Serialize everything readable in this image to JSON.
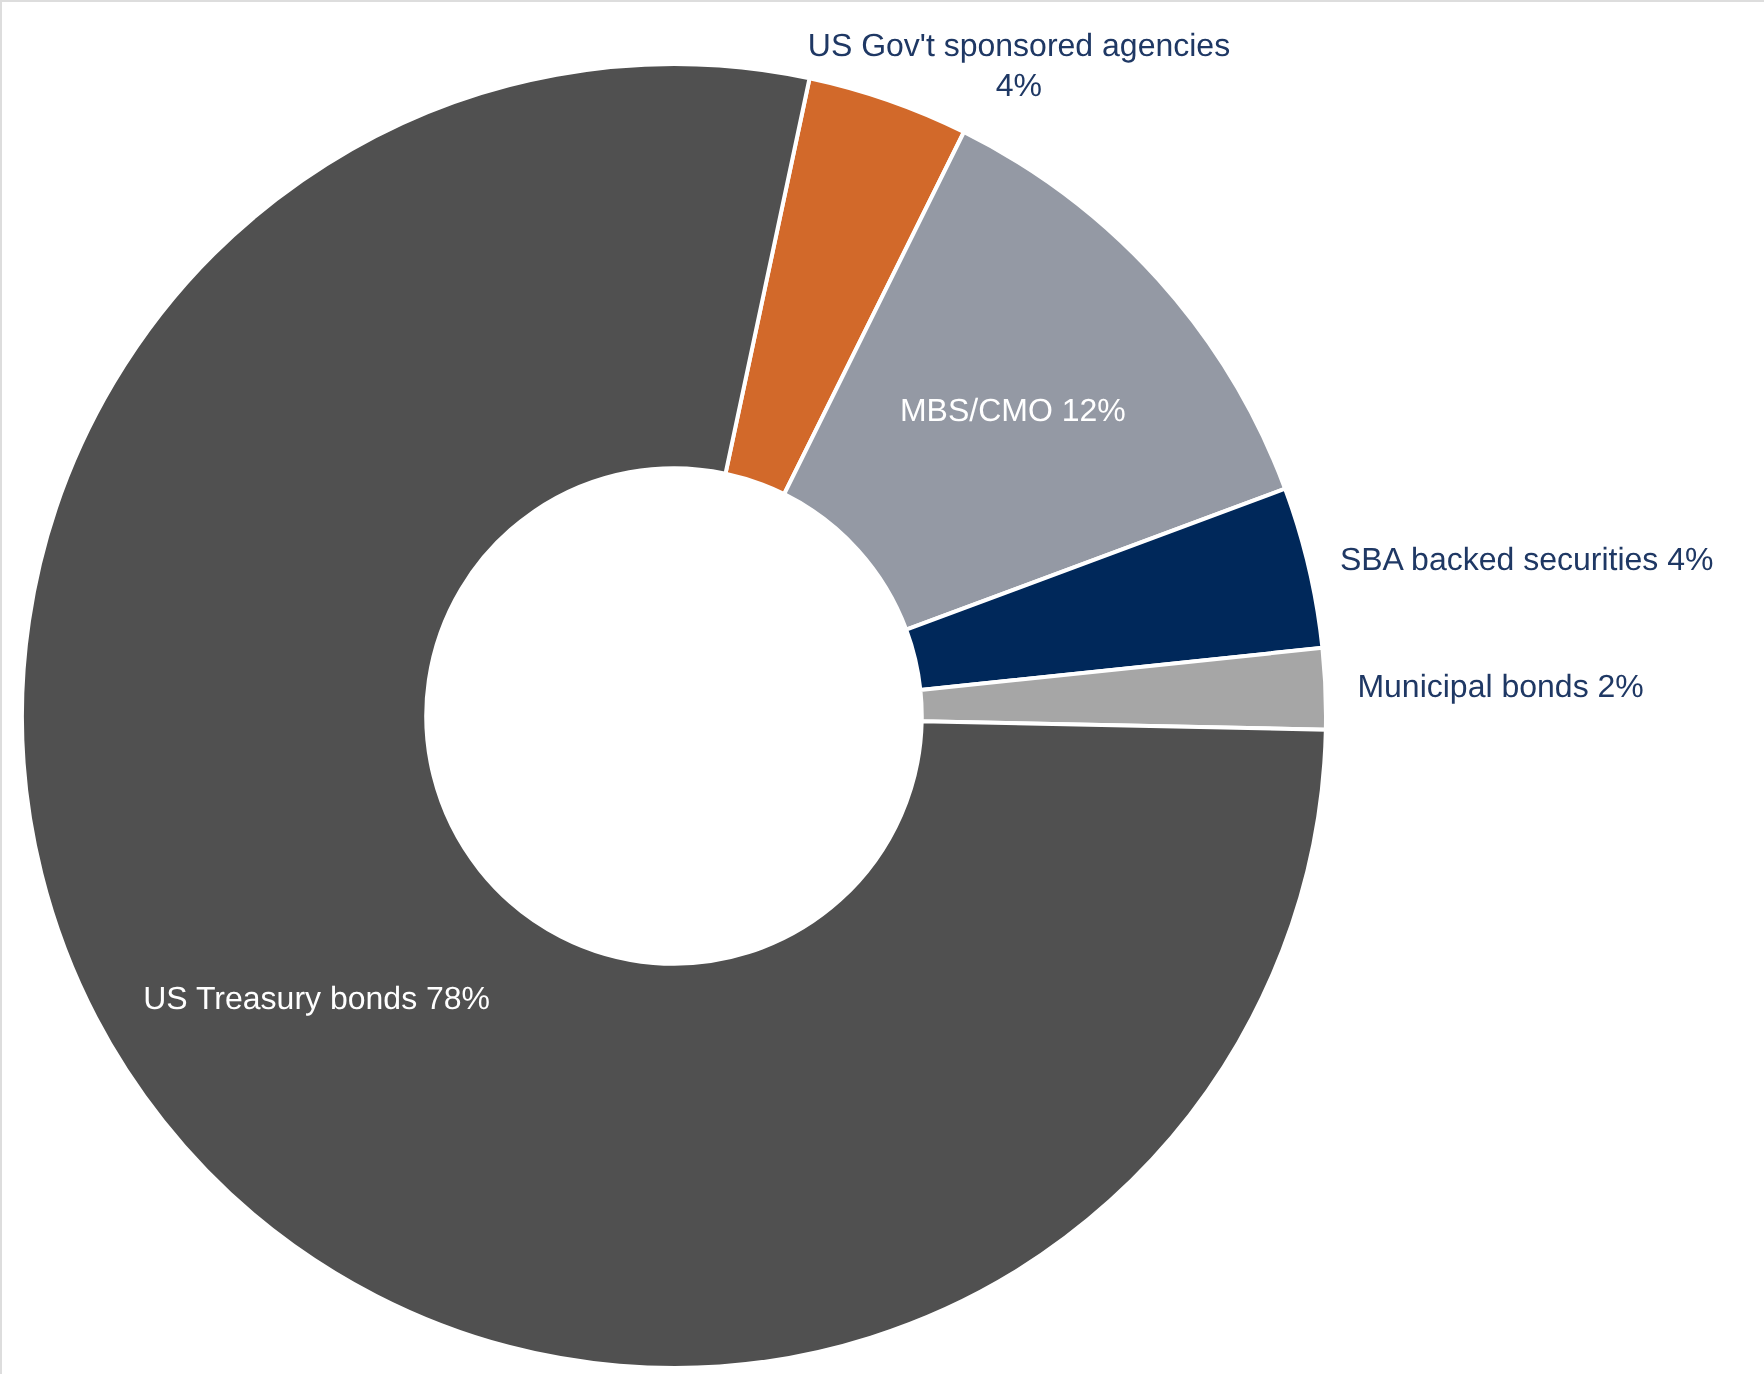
{
  "chart_data": {
    "type": "donut",
    "categories": [
      "US Gov't sponsored agencies",
      "MBS/CMO",
      "SBA backed securities",
      "Municipal bonds",
      "US Treasury bonds"
    ],
    "values": [
      4,
      12,
      4,
      2,
      78
    ],
    "value_labels": [
      "4%",
      "12%",
      "4%",
      "2%",
      "78%"
    ],
    "colors": [
      "#d2692a",
      "#9499a4",
      "#00285a",
      "#a6a6a6",
      "#505050"
    ]
  }
}
